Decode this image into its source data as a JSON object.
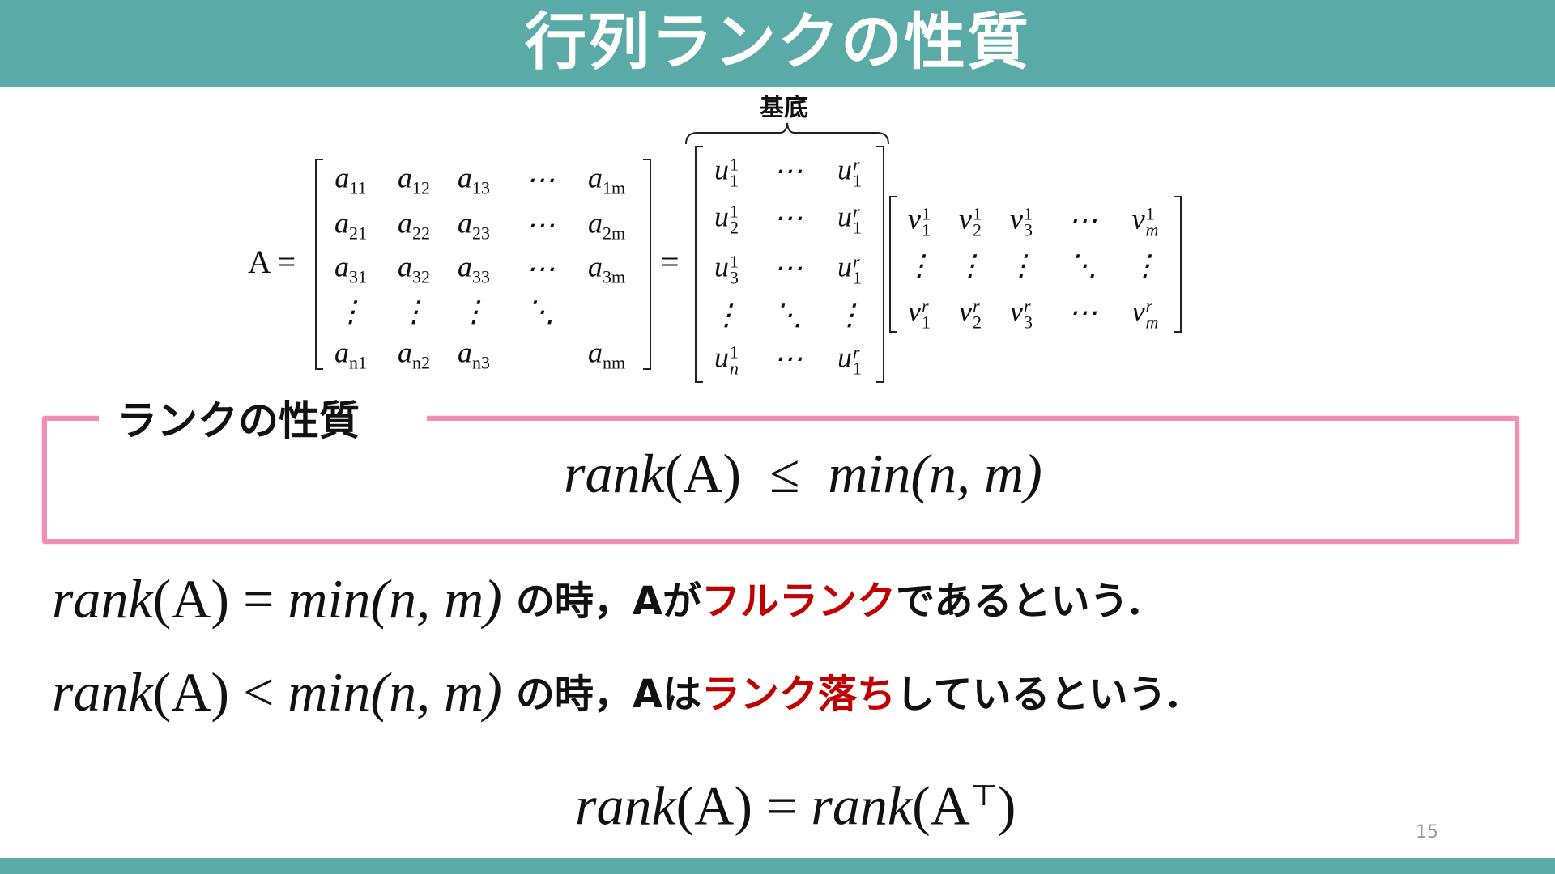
{
  "slide": {
    "title": "行列ランクの性質",
    "page_number": "15",
    "colors": {
      "banner": "#5aaaa7",
      "highlight": "#c00000",
      "box_border": "#ef8fb3"
    }
  },
  "decomposition": {
    "lhs": "A =",
    "equals": "=",
    "basis_label": "基底",
    "matrix_a": [
      [
        {
          "b": "a",
          "s": "11"
        },
        {
          "b": "a",
          "s": "12"
        },
        {
          "b": "a",
          "s": "13"
        },
        {
          "b": "⋯"
        },
        {
          "b": "a",
          "s": "1m"
        }
      ],
      [
        {
          "b": "a",
          "s": "21"
        },
        {
          "b": "a",
          "s": "22"
        },
        {
          "b": "a",
          "s": "23"
        },
        {
          "b": "⋯"
        },
        {
          "b": "a",
          "s": "2m"
        }
      ],
      [
        {
          "b": "a",
          "s": "31"
        },
        {
          "b": "a",
          "s": "32"
        },
        {
          "b": "a",
          "s": "33"
        },
        {
          "b": "⋯"
        },
        {
          "b": "a",
          "s": "3m"
        }
      ],
      [
        {
          "b": "⋮"
        },
        {
          "b": "⋮"
        },
        {
          "b": "⋮"
        },
        {
          "b": "⋱"
        },
        {
          "b": ""
        }
      ],
      [
        {
          "b": "a",
          "s": "n1"
        },
        {
          "b": "a",
          "s": "n2"
        },
        {
          "b": "a",
          "s": "n3"
        },
        {
          "b": ""
        },
        {
          "b": "a",
          "s": "nm"
        }
      ]
    ],
    "matrix_u": [
      [
        {
          "b": "u",
          "p": "1",
          "s": "1"
        },
        {
          "b": "⋯"
        },
        {
          "b": "u",
          "p": "r",
          "s": "1"
        }
      ],
      [
        {
          "b": "u",
          "p": "1",
          "s": "2"
        },
        {
          "b": "⋯"
        },
        {
          "b": "u",
          "p": "r",
          "s": "1"
        }
      ],
      [
        {
          "b": "u",
          "p": "1",
          "s": "3"
        },
        {
          "b": "⋯"
        },
        {
          "b": "u",
          "p": "r",
          "s": "1"
        }
      ],
      [
        {
          "b": "⋮"
        },
        {
          "b": "⋱"
        },
        {
          "b": "⋮"
        }
      ],
      [
        {
          "b": "u",
          "p": "1",
          "s": "n"
        },
        {
          "b": "⋯"
        },
        {
          "b": "u",
          "p": "r",
          "s": "1"
        }
      ]
    ],
    "matrix_v": [
      [
        {
          "b": "v",
          "p": "1",
          "s": "1"
        },
        {
          "b": "v",
          "p": "1",
          "s": "2"
        },
        {
          "b": "v",
          "p": "1",
          "s": "3"
        },
        {
          "b": "⋯"
        },
        {
          "b": "v",
          "p": "1",
          "s": "m"
        }
      ],
      [
        {
          "b": "⋮"
        },
        {
          "b": "⋮"
        },
        {
          "b": "⋮"
        },
        {
          "b": "⋱"
        },
        {
          "b": "⋮"
        }
      ],
      [
        {
          "b": "v",
          "p": "r",
          "s": "1"
        },
        {
          "b": "v",
          "p": "r",
          "s": "2"
        },
        {
          "b": "v",
          "p": "r",
          "s": "3"
        },
        {
          "b": "⋯"
        },
        {
          "b": "v",
          "p": "r",
          "s": "m"
        }
      ]
    ]
  },
  "property_box": {
    "label": "ランクの性質",
    "formula": {
      "lhs": "rank",
      "arg": "(A)",
      "op": "≤",
      "rhs": "min",
      "rhs_arg": "(n, m)"
    }
  },
  "statements": [
    {
      "lhs": "rank",
      "arg": "(A)",
      "op": "=",
      "rhs": "min",
      "rhs_arg": "(n, m)",
      "pre": "の時，Aが",
      "highlight": "フルランク",
      "post": "であるという．"
    },
    {
      "lhs": "rank",
      "arg": "(A)",
      "op": "<",
      "rhs": "min",
      "rhs_arg": "(n, m)",
      "pre": "の時，Aは",
      "highlight": "ランク落ち",
      "post": "しているという．"
    }
  ],
  "transpose": {
    "lhs": "rank",
    "arg": "(A)",
    "op": "=",
    "rhs": "rank",
    "rhs_arg_open": "(A",
    "sup": "⊤",
    "rhs_arg_close": ")"
  }
}
